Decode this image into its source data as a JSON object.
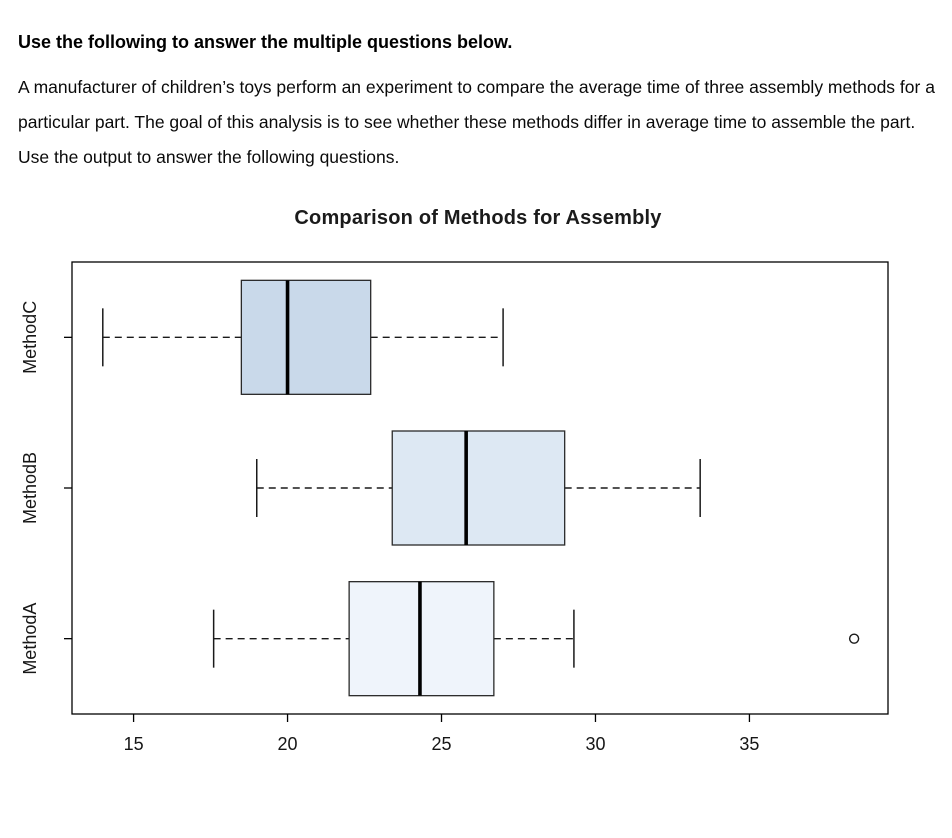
{
  "header": {
    "instruction": "Use the following to answer the multiple questions below.",
    "description": "A manufacturer of children’s toys perform an experiment to compare the average time of three assembly methods for a particular part. The goal of this analysis is to see whether these methods differ in average time to assemble the part.  Use the output to answer the following questions."
  },
  "chart_data": {
    "type": "boxplot",
    "orientation": "horizontal",
    "title": "Comparison of Methods for Assembly",
    "xlabel": "",
    "ylabel": "",
    "xlim": [
      13,
      39.5
    ],
    "x_ticks": [
      15,
      20,
      25,
      30,
      35
    ],
    "grid": false,
    "legend": false,
    "frame_color": "#000000",
    "whisker_style": "dashed",
    "rows_top_to_bottom": [
      {
        "label": "MethodC",
        "whisker_low": 14.0,
        "q1": 18.5,
        "median": 20.0,
        "q3": 22.7,
        "whisker_high": 27.0,
        "outliers": [],
        "fill": "#c9d9ea"
      },
      {
        "label": "MethodB",
        "whisker_low": 19.0,
        "q1": 23.4,
        "median": 25.8,
        "q3": 29.0,
        "whisker_high": 33.4,
        "outliers": [],
        "fill": "#dde8f3"
      },
      {
        "label": "MethodA",
        "whisker_low": 17.6,
        "q1": 22.0,
        "median": 24.3,
        "q3": 26.7,
        "whisker_high": 29.3,
        "outliers": [
          38.4
        ],
        "fill": "#eff4fb"
      }
    ]
  }
}
